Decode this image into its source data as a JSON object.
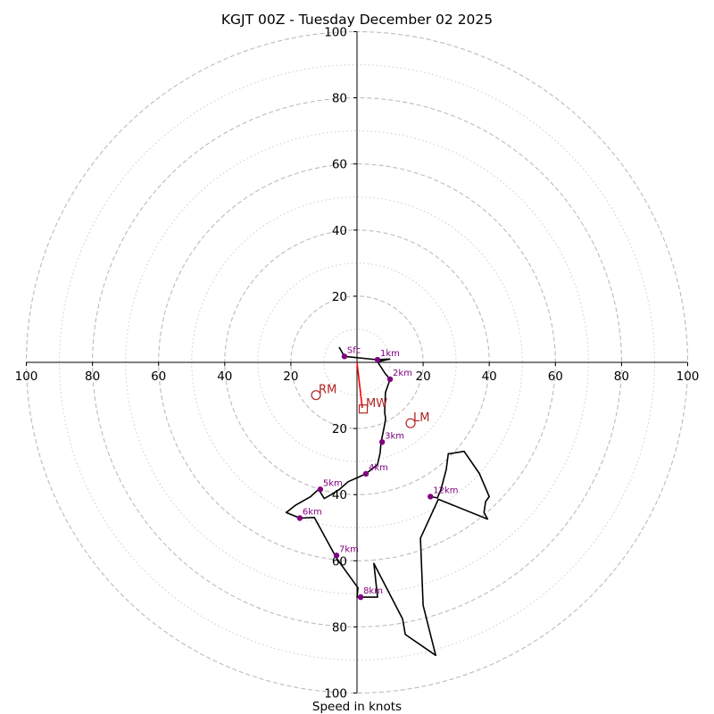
{
  "chart_data": {
    "type": "line",
    "title": "KGJT 00Z - Tuesday December 02 2025",
    "xlabel": "Speed in knots",
    "ylabel": "",
    "xlim": [
      -100,
      100
    ],
    "ylim": [
      -100,
      100
    ],
    "ring_major": [
      20,
      40,
      60,
      80,
      100
    ],
    "ring_minor": [
      10,
      30,
      50,
      70,
      90
    ],
    "x_ticks": [
      {
        "value": -100,
        "label": "100"
      },
      {
        "value": -80,
        "label": "80"
      },
      {
        "value": -60,
        "label": "60"
      },
      {
        "value": -40,
        "label": "40"
      },
      {
        "value": -20,
        "label": "20"
      },
      {
        "value": 20,
        "label": "20"
      },
      {
        "value": 40,
        "label": "40"
      },
      {
        "value": 60,
        "label": "60"
      },
      {
        "value": 80,
        "label": "80"
      },
      {
        "value": 100,
        "label": "100"
      }
    ],
    "y_ticks": [
      {
        "value": 100,
        "label": "100"
      },
      {
        "value": 80,
        "label": "80"
      },
      {
        "value": 60,
        "label": "60"
      },
      {
        "value": 40,
        "label": "40"
      },
      {
        "value": 20,
        "label": "20"
      },
      {
        "value": -20,
        "label": "20"
      },
      {
        "value": -40,
        "label": "40"
      },
      {
        "value": -60,
        "label": "60"
      },
      {
        "value": -80,
        "label": "80"
      },
      {
        "value": -100,
        "label": "100"
      }
    ],
    "trace": [
      [
        -5.4,
        4.6
      ],
      [
        -3.8,
        1.8
      ],
      [
        5.9,
        0.8
      ],
      [
        9.9,
        1.0
      ],
      [
        6.2,
        0.2
      ],
      [
        8.6,
        -3.5
      ],
      [
        10.0,
        -5.1
      ],
      [
        8.6,
        -9.1
      ],
      [
        8.4,
        -14.4
      ],
      [
        8.4,
        -15.5
      ],
      [
        8.6,
        -16.6
      ],
      [
        8.6,
        -17.4
      ],
      [
        8.1,
        -20.2
      ],
      [
        7.3,
        -24.1
      ],
      [
        7.0,
        -27.4
      ],
      [
        6.2,
        -30.9
      ],
      [
        2.7,
        -33.7
      ],
      [
        -2.7,
        -36.1
      ],
      [
        -5.4,
        -38.5
      ],
      [
        -7.8,
        -40.0
      ],
      [
        -9.9,
        -41.2
      ],
      [
        -11.6,
        -38.4
      ],
      [
        -14.0,
        -40.6
      ],
      [
        -18.6,
        -43.2
      ],
      [
        -21.4,
        -45.4
      ],
      [
        -17.3,
        -47.1
      ],
      [
        -12.9,
        -46.9
      ],
      [
        -6.2,
        -59.2
      ],
      [
        0.3,
        -68.2
      ],
      [
        0.0,
        -71.0
      ],
      [
        6.2,
        -71.0
      ],
      [
        5.1,
        -60.8
      ],
      [
        13.8,
        -77.6
      ],
      [
        14.6,
        -82.3
      ],
      [
        23.8,
        -88.6
      ],
      [
        20.0,
        -73.5
      ],
      [
        19.2,
        -53.2
      ],
      [
        24.6,
        -41.4
      ],
      [
        39.5,
        -47.4
      ],
      [
        38.4,
        -45.4
      ],
      [
        38.9,
        -42.1
      ],
      [
        40.0,
        -40.6
      ],
      [
        37.0,
        -33.6
      ],
      [
        32.4,
        -26.9
      ],
      [
        28.1,
        -27.6
      ],
      [
        27.6,
        -27.6
      ],
      [
        27.0,
        -32.4
      ],
      [
        25.4,
        -38.4
      ],
      [
        24.3,
        -41.0
      ],
      [
        22.2,
        -40.6
      ]
    ],
    "height_markers": [
      {
        "label": "Sfc",
        "u": -3.8,
        "v": 1.8
      },
      {
        "label": "1km",
        "u": 6.2,
        "v": 0.8
      },
      {
        "label": "2km",
        "u": 10.0,
        "v": -5.1
      },
      {
        "label": "3km",
        "u": 7.6,
        "v": -24.1
      },
      {
        "label": "4km",
        "u": 2.7,
        "v": -33.7
      },
      {
        "label": "5km",
        "u": -11.1,
        "v": -38.4
      },
      {
        "label": "6km",
        "u": -17.3,
        "v": -47.1
      },
      {
        "label": "7km",
        "u": -6.2,
        "v": -58.4
      },
      {
        "label": "8km",
        "u": 1.1,
        "v": -71.0
      },
      {
        "label": "12km",
        "u": 22.2,
        "v": -40.6
      }
    ],
    "storm_motion": [
      {
        "label": "RM",
        "u": -12.4,
        "v": -9.9,
        "marker": "circle"
      },
      {
        "label": "LM",
        "u": 16.2,
        "v": -18.4,
        "marker": "circle"
      },
      {
        "label": "MW",
        "u": 1.9,
        "v": -14.1,
        "marker": "square"
      }
    ],
    "shear_vector": {
      "from": [
        0,
        0
      ],
      "to": [
        1.6,
        -13.8
      ]
    },
    "colors": {
      "trace": "#000000",
      "markers": "#800080",
      "storm_motion": "#b22222",
      "shear_vector": "#ff0000",
      "rings": "#bbbbbb",
      "axes": "#000000"
    }
  }
}
